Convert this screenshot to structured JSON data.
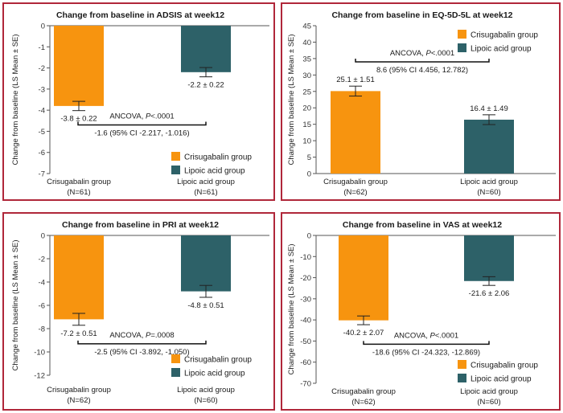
{
  "colors": {
    "series1": "#f7940f",
    "series2": "#2d6168",
    "border": "#b0273a"
  },
  "chart_data": [
    {
      "type": "bar",
      "title": "Change from baseline in ADSIS at week12",
      "ylabel": "Change from baseline (LS Mean ± SE)",
      "ylim": [
        -7,
        0
      ],
      "yticks": [
        0,
        -1,
        -2,
        -3,
        -4,
        -5,
        -6,
        -7
      ],
      "categories": [
        "Crisugabalin group",
        "Lipoic acid group"
      ],
      "category_n": [
        "(N=61)",
        "(N=61)"
      ],
      "values": [
        -3.8,
        -2.2
      ],
      "errors": [
        0.22,
        0.22
      ],
      "value_labels": [
        "-3.8 ± 0.22",
        "-2.2 ± 0.22"
      ],
      "legend": [
        "Crisugabalin group",
        "Lipoic acid group"
      ],
      "legend_position": "bottom-right",
      "annotation": {
        "prefix": "ANCOVA, ",
        "p_italic": "P",
        "p_rest": "<.0001",
        "diff": "-1.6 (95% CI -2.217, -1.016)",
        "bracket_y": -4.7
      }
    },
    {
      "type": "bar",
      "title": "Change from baseline in EQ-5D-5L at week12",
      "ylabel": "Change from baseline (LS Mean ± SE)",
      "ylim": [
        0,
        45
      ],
      "yticks": [
        0,
        5,
        10,
        15,
        20,
        25,
        30,
        35,
        40,
        45
      ],
      "categories": [
        "Crisugabalin group",
        "Lipoic acid group"
      ],
      "category_n": [
        "(N=62)",
        "(N=60)"
      ],
      "values": [
        25.1,
        16.4
      ],
      "errors": [
        1.51,
        1.49
      ],
      "value_labels": [
        "25.1 ± 1.51",
        "16.4 ± 1.49"
      ],
      "legend": [
        "Crisugabalin group",
        "Lipoic acid group"
      ],
      "legend_position": "top-right",
      "annotation": {
        "prefix": "ANCOVA, ",
        "p_italic": "P",
        "p_rest": "<.0001",
        "diff": "8.6 (95% CI 4.456, 12.782)",
        "bracket_y": 34
      }
    },
    {
      "type": "bar",
      "title": "Change from baseline in PRI at week12",
      "ylabel": "Change from baseline (LS Mean ± SE)",
      "ylim": [
        -12,
        0
      ],
      "yticks": [
        0,
        -2,
        -4,
        -6,
        -8,
        -10,
        -12
      ],
      "categories": [
        "Crisugabalin group",
        "Lipoic acid group"
      ],
      "category_n": [
        "(N=62)",
        "(N=60)"
      ],
      "values": [
        -7.2,
        -4.8
      ],
      "errors": [
        0.51,
        0.51
      ],
      "value_labels": [
        "-7.2 ± 0.51",
        "-4.8 ± 0.51"
      ],
      "legend": [
        "Crisugabalin group",
        "Lipoic acid group"
      ],
      "legend_position": "bottom-right",
      "annotation": {
        "prefix": "ANCOVA, ",
        "p_italic": "P",
        "p_rest": "=.0008",
        "diff": "-2.5 (95% CI -3.892, -1.050)",
        "bracket_y": -9.3
      }
    },
    {
      "type": "bar",
      "title": "Change from baseline in VAS at week12",
      "ylabel": "Change from baseline (LS Mean ± SE)",
      "ylim": [
        -70,
        0
      ],
      "yticks": [
        0,
        -10,
        -20,
        -30,
        -40,
        -50,
        -60,
        -70
      ],
      "categories": [
        "Crisugabalin group",
        "Lipoic acid group"
      ],
      "category_n": [
        "(N=62)",
        "(N=60)"
      ],
      "values": [
        -40.2,
        -21.6
      ],
      "errors": [
        2.07,
        2.06
      ],
      "value_labels": [
        "-40.2 ± 2.07",
        "-21.6 ± 2.06"
      ],
      "legend": [
        "Crisugabalin group",
        "Lipoic acid group"
      ],
      "legend_position": "bottom-right",
      "annotation": {
        "prefix": "ANCOVA, ",
        "p_italic": "P",
        "p_rest": "<.0001",
        "diff": "-18.6 (95% CI -24.323, -12.869)",
        "bracket_y": -51.5
      }
    }
  ]
}
